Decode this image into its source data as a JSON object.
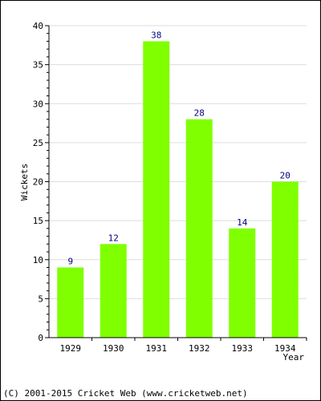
{
  "chart_data": {
    "type": "bar",
    "categories": [
      "1929",
      "1930",
      "1931",
      "1932",
      "1933",
      "1934"
    ],
    "values": [
      9,
      12,
      38,
      28,
      14,
      20
    ],
    "data_labels": [
      "9",
      "12",
      "38",
      "28",
      "14",
      "20"
    ],
    "title": "",
    "xlabel": "Year",
    "ylabel": "Wickets",
    "ylim": [
      0,
      40
    ],
    "yticks": [
      "0",
      "5",
      "10",
      "15",
      "20",
      "25",
      "30",
      "35",
      "40"
    ],
    "grid": true,
    "legend": "none",
    "bar_color": "#80ff00",
    "label_color": "#000080"
  },
  "footer": "(C) 2001-2015 Cricket Web (www.cricketweb.net)"
}
